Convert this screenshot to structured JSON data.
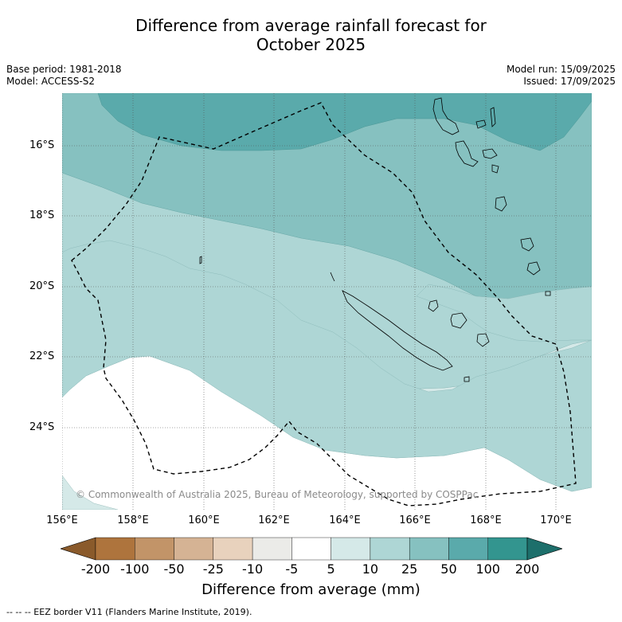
{
  "title_line1": "Difference from average rainfall forecast for",
  "title_line2": "October 2025",
  "meta_left": {
    "base_period": "Base period: 1981-2018",
    "model": "Model: ACCESS-S2"
  },
  "meta_right": {
    "model_run": "Model run: 15/09/2025",
    "issued": "Issued: 17/09/2025"
  },
  "lat_labels": [
    "16°S",
    "18°S",
    "20°S",
    "22°S",
    "24°S"
  ],
  "lon_labels": [
    "156°E",
    "158°E",
    "160°E",
    "162°E",
    "164°E",
    "166°E",
    "168°E",
    "170°E"
  ],
  "copyright": "© Commonwealth of Australia 2025, Bureau of Meteorology, supported by COSPPac",
  "colorbar": {
    "ticks": [
      "-200",
      "-100",
      "-50",
      "-25",
      "-10",
      "-5",
      "5",
      "10",
      "25",
      "50",
      "100",
      "200"
    ],
    "colors": [
      "#8a5a2b",
      "#ae743d",
      "#c29468",
      "#d5b394",
      "#e8d2bd",
      "#ebebe8",
      "#ffffff",
      "#d5e9e8",
      "#aed6d5",
      "#86c1c0",
      "#5aaaab",
      "#33958f",
      "#1d6f6b"
    ],
    "label": "Difference from average (mm)"
  },
  "footnote": "--  --  -- EEZ border V11 (Flanders Marine Institute, 2019)."
}
